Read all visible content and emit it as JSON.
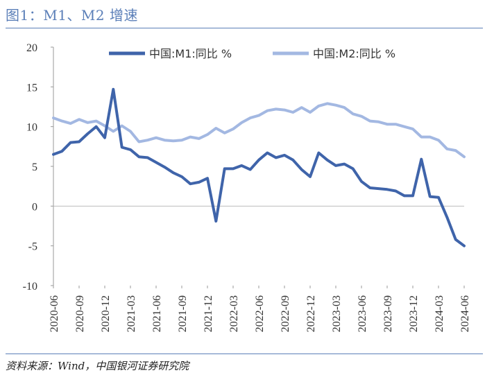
{
  "title": "图1：M1、M2 增速",
  "source": "资料来源：Wind，中国银河证券研究院",
  "chart_data": {
    "type": "line",
    "ylim": [
      -10,
      20
    ],
    "yticks": [
      -10,
      -5,
      0,
      5,
      10,
      15,
      20
    ],
    "grid": false,
    "legend_position": "top",
    "x": [
      "2020-06",
      "2020-07",
      "2020-08",
      "2020-09",
      "2020-10",
      "2020-11",
      "2020-12",
      "2021-01",
      "2021-02",
      "2021-03",
      "2021-04",
      "2021-05",
      "2021-06",
      "2021-07",
      "2021-08",
      "2021-09",
      "2021-10",
      "2021-11",
      "2021-12",
      "2022-01",
      "2022-02",
      "2022-03",
      "2022-04",
      "2022-05",
      "2022-06",
      "2022-07",
      "2022-08",
      "2022-09",
      "2022-10",
      "2022-11",
      "2022-12",
      "2023-01",
      "2023-02",
      "2023-03",
      "2023-04",
      "2023-05",
      "2023-06",
      "2023-07",
      "2023-08",
      "2023-09",
      "2023-10",
      "2023-11",
      "2023-12",
      "2024-01",
      "2024-02",
      "2024-03",
      "2024-04",
      "2024-05",
      "2024-06"
    ],
    "xtick_labels": [
      "2020-06",
      "2020-09",
      "2020-12",
      "2021-03",
      "2021-06",
      "2021-09",
      "2021-12",
      "2022-03",
      "2022-06",
      "2022-09",
      "2022-12",
      "2023-03",
      "2023-06",
      "2023-09",
      "2023-12",
      "2024-03",
      "2024-06"
    ],
    "series": [
      {
        "name": "中国:M1:同比 %",
        "color": "#3f64aa",
        "values": [
          6.5,
          6.9,
          8.0,
          8.1,
          9.1,
          10.0,
          8.6,
          14.7,
          7.4,
          7.1,
          6.2,
          6.1,
          5.5,
          4.9,
          4.2,
          3.7,
          2.8,
          3.0,
          3.5,
          -1.9,
          4.7,
          4.7,
          5.1,
          4.6,
          5.8,
          6.7,
          6.1,
          6.4,
          5.8,
          4.6,
          3.7,
          6.7,
          5.8,
          5.1,
          5.3,
          4.7,
          3.1,
          2.3,
          2.2,
          2.1,
          1.9,
          1.3,
          1.3,
          5.9,
          1.2,
          1.1,
          -1.4,
          -4.2,
          -5.0
        ]
      },
      {
        "name": "中国:M2:同比 %",
        "color": "#a3b8e2",
        "values": [
          11.1,
          10.7,
          10.4,
          10.9,
          10.5,
          10.7,
          10.1,
          9.4,
          10.1,
          9.4,
          8.1,
          8.3,
          8.6,
          8.3,
          8.2,
          8.3,
          8.7,
          8.5,
          9.0,
          9.8,
          9.2,
          9.7,
          10.5,
          11.1,
          11.4,
          12.0,
          12.2,
          12.1,
          11.8,
          12.4,
          11.8,
          12.6,
          12.9,
          12.7,
          12.4,
          11.6,
          11.3,
          10.7,
          10.6,
          10.3,
          10.3,
          10.0,
          9.7,
          8.7,
          8.7,
          8.3,
          7.2,
          7.0,
          6.2
        ]
      }
    ]
  }
}
